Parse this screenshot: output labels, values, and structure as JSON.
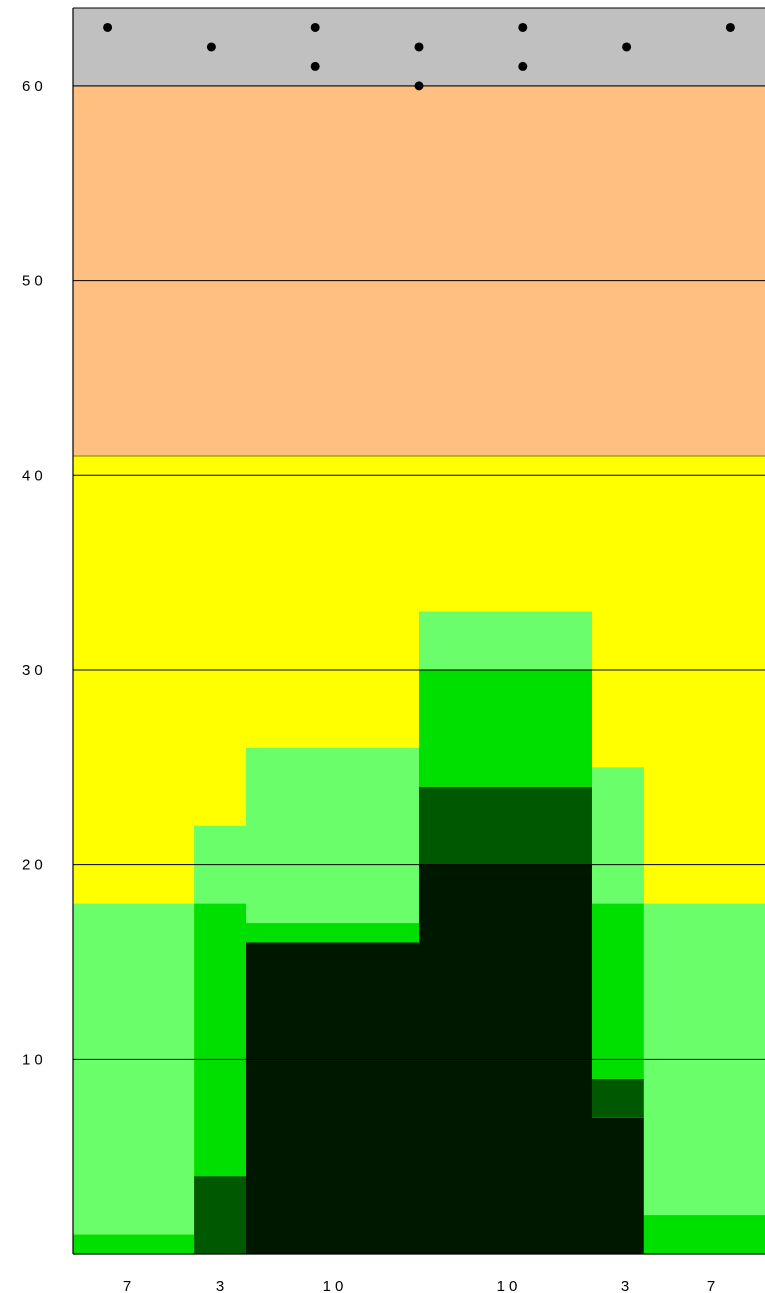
{
  "chart_data": {
    "type": "bar",
    "ylim": [
      0,
      64
    ],
    "y_ticks": [
      10,
      20,
      30,
      40,
      50,
      60
    ],
    "grid": true,
    "column_widths": [
      7,
      3,
      10,
      10,
      3,
      7
    ],
    "x_tick_labels": [
      "7",
      "3",
      "10",
      "10",
      "3",
      "7"
    ],
    "bands": [
      {
        "from": 0,
        "to": 41,
        "color": "#ffff00"
      },
      {
        "from": 41,
        "to": 60,
        "color": "#ffbf80"
      },
      {
        "from": 60,
        "to": 64,
        "color": "#c0c0c0"
      }
    ],
    "layer_colors": [
      "#001800",
      "#005800",
      "#00e000",
      "#6aff6a"
    ],
    "columns": [
      {
        "label": "7",
        "layers": [
          0,
          0,
          1,
          18
        ]
      },
      {
        "label": "3",
        "layers": [
          0,
          4,
          18,
          22
        ]
      },
      {
        "label": "10",
        "layers": [
          16,
          16,
          17,
          26
        ]
      },
      {
        "label": "10",
        "layers": [
          20,
          24,
          30,
          33
        ]
      },
      {
        "label": "3",
        "layers": [
          7,
          9,
          18,
          25
        ]
      },
      {
        "label": "7",
        "layers": [
          0,
          0,
          2,
          18
        ]
      }
    ],
    "dots_note": "",
    "dots": [
      {
        "x": 2,
        "y": 63
      },
      {
        "x": 8,
        "y": 62
      },
      {
        "x": 14,
        "y": 63
      },
      {
        "x": 14,
        "y": 61
      },
      {
        "x": 20,
        "y": 62
      },
      {
        "x": 20,
        "y": 60
      },
      {
        "x": 26,
        "y": 63
      },
      {
        "x": 26,
        "y": 61
      },
      {
        "x": 32,
        "y": 62
      },
      {
        "x": 38,
        "y": 63
      }
    ]
  }
}
